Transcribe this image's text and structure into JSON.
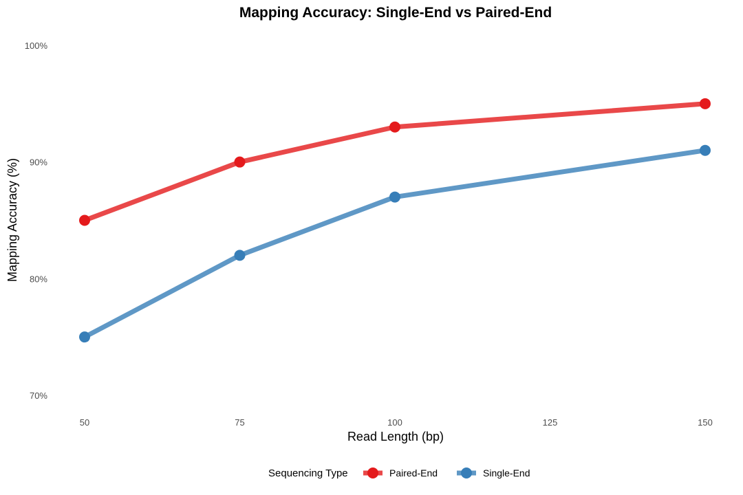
{
  "chart_data": {
    "type": "line",
    "title": "Mapping Accuracy: Single-End vs Paired-End",
    "xlabel": "Read Length (bp)",
    "ylabel": "Mapping Accuracy (%)",
    "x": [
      50,
      75,
      100,
      150
    ],
    "x_ticks": [
      50,
      75,
      100,
      125,
      150
    ],
    "x_tick_labels": [
      "50",
      "75",
      "100",
      "125",
      "150"
    ],
    "xlim": [
      50,
      150
    ],
    "y_ticks": [
      0.7,
      0.8,
      0.9,
      1.0
    ],
    "y_tick_labels": [
      "70%",
      "80%",
      "90%",
      "100%"
    ],
    "ylim": [
      0.7,
      1.0
    ],
    "grid": false,
    "legend": {
      "title": "Sequencing Type",
      "position": "bottom"
    },
    "series": [
      {
        "name": "Paired-End",
        "color": "#E41A1C",
        "values": [
          0.85,
          0.9,
          0.93,
          0.95
        ]
      },
      {
        "name": "Single-End",
        "color": "#377EB8",
        "values": [
          0.75,
          0.82,
          0.87,
          0.91
        ]
      }
    ]
  }
}
